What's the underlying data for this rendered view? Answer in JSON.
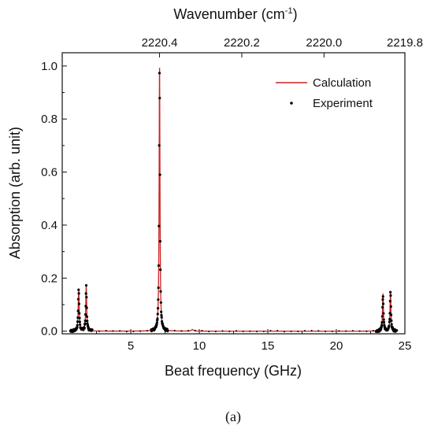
{
  "chart_data": {
    "type": "line",
    "xlabel": "Beat frequency (GHz)",
    "ylabel": "Absorption (arb. unit)",
    "x2label": "Wavenumber (cm",
    "x2label_sup": "-1",
    "x2label_end": ")",
    "xlim": [
      0,
      25
    ],
    "ylim": [
      -0.01,
      1.05
    ],
    "x_ticks": [
      5,
      10,
      15,
      20,
      25
    ],
    "x_tick_labels": [
      "5",
      "10",
      "15",
      "20",
      "25"
    ],
    "y_ticks": [
      0.0,
      0.2,
      0.4,
      0.6,
      0.8,
      1.0
    ],
    "y_tick_labels": [
      "0.0",
      "0.2",
      "0.4",
      "0.6",
      "0.8",
      "1.0"
    ],
    "x2_ticks": [
      2220.4,
      2220.2,
      2220.0,
      2219.8
    ],
    "x2_tick_labels": [
      "2220.4",
      "2220.2",
      "2220.0",
      "2219.8"
    ],
    "x2_tick_positions_ghz": [
      7.1,
      13.1,
      19.1,
      25.1
    ],
    "legend_placement": "top-right",
    "series": [
      {
        "name": "Calculation",
        "style": "line",
        "color": "#cc2222",
        "peaks": [
          {
            "center": 1.2,
            "height": 0.16,
            "width": 0.08
          },
          {
            "center": 1.75,
            "height": 0.17,
            "width": 0.08
          },
          {
            "center": 7.1,
            "height": 1.0,
            "width": 0.07
          },
          {
            "center": 9.5,
            "height": 0.006,
            "width": 0.15
          },
          {
            "center": 23.4,
            "height": 0.14,
            "width": 0.08
          },
          {
            "center": 23.95,
            "height": 0.145,
            "width": 0.08
          }
        ]
      },
      {
        "name": "Experiment",
        "style": "points",
        "color": "#000000"
      }
    ],
    "panel_label": "(a)"
  }
}
